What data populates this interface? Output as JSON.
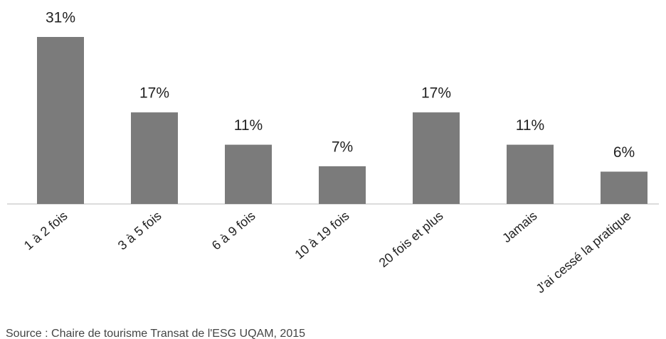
{
  "chart_data": {
    "type": "bar",
    "categories": [
      "1 à 2 fois",
      "3 à 5 fois",
      "6 à 9 fois",
      "10 à 19 fois",
      "20 fois et plus",
      "Jamais",
      "J'ai cessé la pratique"
    ],
    "values": [
      31,
      17,
      11,
      7,
      17,
      11,
      6
    ],
    "value_labels": [
      "31%",
      "17%",
      "11%",
      "7%",
      "17%",
      "11%",
      "6%"
    ],
    "color": "#7b7b7b",
    "source": "Source : Chaire de tourisme Transat de l'ESG UQAM, 2015"
  }
}
